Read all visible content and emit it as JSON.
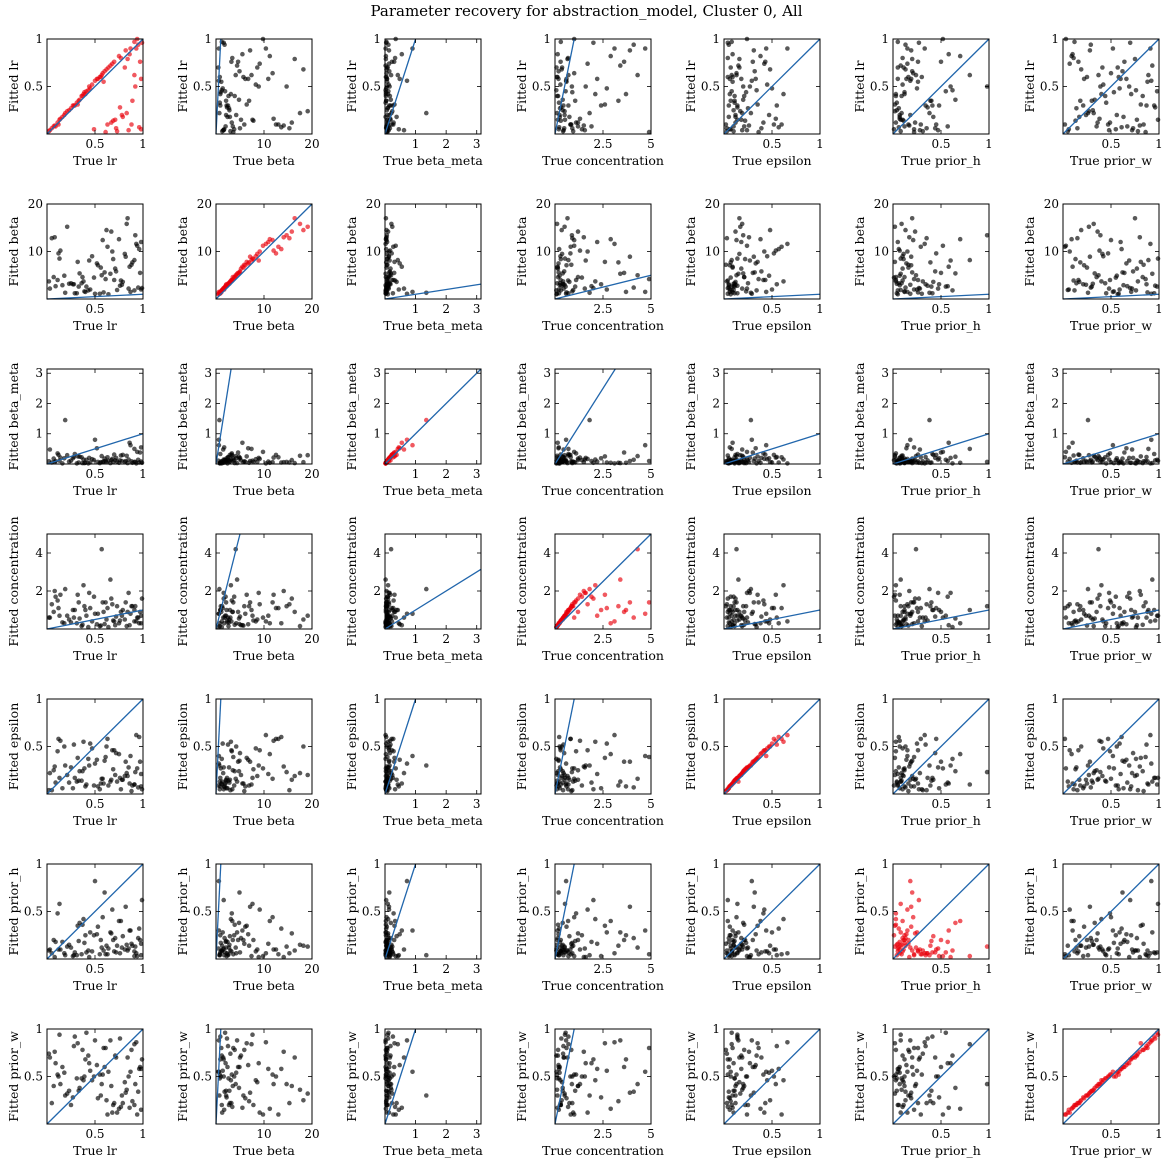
{
  "title": "Parameter recovery for abstraction_model, Cluster 0, All",
  "colors": {
    "diagonal": "#2166ac",
    "on_diag_points": "#e8000b",
    "off_diag_points": "#000000"
  },
  "chart_data": {
    "type": "scatter",
    "layout": "7x7 pairwise grid",
    "parameters": [
      {
        "name": "lr",
        "xlabel": "True lr",
        "ylabel": "Fitted lr",
        "lim": [
          0,
          1.0
        ],
        "xticks": [
          0.5,
          1.0
        ],
        "yticks": [
          0.5,
          1.0
        ]
      },
      {
        "name": "beta",
        "xlabel": "True beta",
        "ylabel": "Fitted beta",
        "lim": [
          0,
          20
        ],
        "xticks": [
          10,
          20
        ],
        "yticks": [
          10,
          20
        ]
      },
      {
        "name": "beta_meta",
        "xlabel": "True beta_meta",
        "ylabel": "Fitted beta_meta",
        "lim": [
          0,
          3.14
        ],
        "xticks": [
          1,
          2,
          3
        ],
        "yticks": [
          1,
          2,
          3
        ]
      },
      {
        "name": "concentration",
        "xlabel": "True concentration",
        "ylabel": "Fitted concentration",
        "lim": [
          0,
          5.0
        ],
        "xticks": [
          2.5,
          5.0
        ],
        "yticks": [
          2,
          4
        ]
      },
      {
        "name": "epsilon",
        "xlabel": "True epsilon",
        "ylabel": "Fitted epsilon",
        "lim": [
          0,
          1.0
        ],
        "xticks": [
          0.5,
          1.0
        ],
        "yticks": [
          0.5,
          1.0
        ]
      },
      {
        "name": "prior_h",
        "xlabel": "True prior_h",
        "ylabel": "Fitted prior_h",
        "lim": [
          0,
          1.0
        ],
        "xticks": [
          0.5,
          1.0
        ],
        "yticks": [
          0.5,
          1.0
        ]
      },
      {
        "name": "prior_w",
        "xlabel": "True prior_w",
        "ylabel": "Fitted prior_w",
        "lim": [
          0,
          1.0
        ],
        "xticks": [
          0.5,
          1.0
        ],
        "yticks": [
          0.5,
          1.0
        ]
      }
    ],
    "true_values": {
      "lr": [
        0.91,
        0.07,
        0.55,
        0.32,
        0.78,
        0.12,
        0.66,
        0.98,
        0.44,
        0.23,
        0.87,
        0.05,
        0.71,
        0.38,
        0.59,
        0.94,
        0.16,
        0.82,
        0.29,
        0.62,
        0.49,
        0.03,
        0.75,
        0.36,
        0.88,
        0.19,
        0.96,
        0.57,
        0.41,
        0.69,
        0.11,
        0.84,
        0.27,
        0.52,
        0.73,
        0.93,
        0.34,
        0.64,
        0.08,
        0.79,
        0.47,
        0.99,
        0.21,
        0.61,
        0.86,
        0.39,
        0.14,
        0.76,
        0.53,
        0.97,
        0.31,
        0.68,
        0.02,
        0.83,
        0.45,
        0.91,
        0.25,
        0.58,
        0.72,
        0.95,
        0.37,
        0.63,
        0.09,
        0.81,
        0.5,
        0.89,
        0.18,
        0.67,
        0.43,
        0.77,
        0.98,
        0.28,
        0.56,
        0.85,
        0.13,
        0.7,
        0.4,
        0.92,
        0.6,
        0.33
      ],
      "beta": [
        1.2,
        3.5,
        0.8,
        6.4,
        2.1,
        12.5,
        4.4,
        1.7,
        8.9,
        2.8,
        0.6,
        15.3,
        5.2,
        3.1,
        1.1,
        9.8,
        2.4,
        7.1,
        0.9,
        18.2,
        3.8,
        1.5,
        11.2,
        2.6,
        5.9,
        0.7,
        13.6,
        4.1,
        1.9,
        7.8,
        3.3,
        16.4,
        2.2,
        6.7,
        1.3,
        10.4,
        4.8,
        0.5,
        14.1,
        2.9,
        8.3,
        1.6,
        19.1,
        3.6,
        5.5,
        1.0,
        12.0,
        2.3,
        6.1,
        4.6,
        0.8,
        9.1,
        3.0,
        17.5,
        1.4,
        7.4,
        2.7,
        11.8,
        5.0,
        1.8,
        3.9,
        13.0,
        2.0,
        8.6,
        0.6,
        6.9,
        4.2,
        15.8,
        1.2,
        3.4,
        10.9,
        2.5,
        5.7,
        1.6,
        7.6,
        3.2,
        0.9,
        14.7,
        4.9,
        2.1
      ],
      "beta_meta": [
        0.05,
        0.12,
        0.03,
        0.31,
        0.08,
        0.22,
        0.02,
        0.45,
        0.15,
        0.06,
        0.9,
        0.04,
        0.18,
        0.1,
        0.07,
        0.35,
        0.02,
        0.13,
        0.26,
        0.05,
        0.09,
        0.62,
        0.03,
        0.16,
        0.08,
        1.35,
        0.04,
        0.2,
        0.11,
        0.06,
        0.28,
        0.03,
        0.14,
        0.48,
        0.07,
        0.02,
        0.19,
        0.09,
        0.05,
        0.38,
        0.12,
        0.04,
        0.24,
        0.08,
        0.55,
        0.03,
        0.17,
        0.1,
        0.06,
        0.3,
        0.02,
        0.13,
        0.07,
        0.21,
        0.04,
        0.42,
        0.09,
        0.05,
        0.16,
        0.11,
        0.03,
        0.27,
        0.08,
        0.06,
        0.72,
        0.04,
        0.15,
        0.1,
        0.02,
        0.33,
        0.07,
        0.18,
        0.05,
        0.12,
        0.09,
        0.23,
        0.03,
        0.06,
        0.14,
        0.04
      ],
      "concentration": [
        0.3,
        1.2,
        0.1,
        2.6,
        0.5,
        0.8,
        3.4,
        0.2,
        1.6,
        0.4,
        4.7,
        0.9,
        0.15,
        2.1,
        0.6,
        1.0,
        0.25,
        3.9,
        0.7,
        0.35,
        1.4,
        0.45,
        2.9,
        0.12,
        0.85,
        1.8,
        0.22,
        4.3,
        0.55,
        0.3,
        1.1,
        0.65,
        2.4,
        0.18,
        0.95,
        3.1,
        0.4,
        0.08,
        1.5,
        0.75,
        0.28,
        2.0,
        0.5,
        4.9,
        0.14,
        0.9,
        1.3,
        0.33,
        0.6,
        3.6,
        0.21,
        1.7,
        0.42,
        0.11,
        2.7,
        0.7,
        0.26,
        1.0,
        0.48,
        4.1,
        0.16,
        0.82,
        1.9,
        0.37,
        0.58,
        3.3,
        0.24,
        1.2,
        0.07,
        0.68,
        2.2,
        0.44,
        0.13,
        1.55,
        0.52,
        0.29,
        3.7,
        0.88,
        0.19,
        1.05
      ],
      "epsilon": [
        0.08,
        0.21,
        0.04,
        0.35,
        0.12,
        0.52,
        0.15,
        0.06,
        0.27,
        0.1,
        0.44,
        0.03,
        0.18,
        0.62,
        0.09,
        0.24,
        0.05,
        0.31,
        0.14,
        0.48,
        0.07,
        0.19,
        0.38,
        0.11,
        0.02,
        0.28,
        0.57,
        0.13,
        0.08,
        0.22,
        0.41,
        0.16,
        0.05,
        0.33,
        0.1,
        0.66,
        0.2,
        0.07,
        0.26,
        0.12,
        0.45,
        0.04,
        0.17,
        0.36,
        0.09,
        0.23,
        0.54,
        0.14,
        0.06,
        0.3,
        0.11,
        0.42,
        0.03,
        0.19,
        0.5,
        0.08,
        0.25,
        0.13,
        0.39,
        0.05,
        0.21,
        0.6,
        0.1,
        0.16,
        0.29,
        0.07,
        0.47,
        0.12,
        0.34,
        0.04,
        0.18,
        0.55,
        0.09,
        0.24,
        0.14,
        0.43,
        0.06,
        0.2,
        0.32,
        0.11
      ],
      "prior_h": [
        0.05,
        0.12,
        0.3,
        0.02,
        0.18,
        0.45,
        0.08,
        0.22,
        0.6,
        0.04,
        0.15,
        0.35,
        0.1,
        0.03,
        0.26,
        0.52,
        0.07,
        0.19,
        0.41,
        0.13,
        0.01,
        0.28,
        0.7,
        0.09,
        0.16,
        0.38,
        0.06,
        0.24,
        0.55,
        0.11,
        0.03,
        0.2,
        0.48,
        0.14,
        0.08,
        0.33,
        0.65,
        0.05,
        0.17,
        0.42,
        0.1,
        0.27,
        0.02,
        0.22,
        0.58,
        0.12,
        0.07,
        0.36,
        0.19,
        0.5,
        0.04,
        0.15,
        0.31,
        0.09,
        0.25,
        0.8,
        0.06,
        0.21,
        0.44,
        0.13,
        0.03,
        0.29,
        0.57,
        0.11,
        0.18,
        0.39,
        0.07,
        0.23,
        0.62,
        0.1,
        0.05,
        0.34,
        0.16,
        0.47,
        0.08,
        0.26,
        0.12,
        0.98,
        0.2,
        0.4
      ],
      "prior_w": [
        0.12,
        0.35,
        0.58,
        0.81,
        0.24,
        0.47,
        0.93,
        0.06,
        0.69,
        0.31,
        0.52,
        0.15,
        0.77,
        0.4,
        0.88,
        0.03,
        0.63,
        0.28,
        0.95,
        0.19,
        0.55,
        0.72,
        0.09,
        0.44,
        0.84,
        0.26,
        0.61,
        0.37,
        0.98,
        0.13,
        0.49,
        0.75,
        0.21,
        0.66,
        0.05,
        0.91,
        0.33,
        0.57,
        0.8,
        0.17,
        0.42,
        0.7,
        0.27,
        0.86,
        0.1,
        0.53,
        0.38,
        0.96,
        0.22,
        0.64,
        0.45,
        0.07,
        0.78,
        0.32,
        0.59,
        0.89,
        0.14,
        0.5,
        0.73,
        0.29,
        0.83,
        0.02,
        0.67,
        0.41,
        0.92,
        0.18,
        0.56,
        0.36,
        0.76,
        0.11,
        0.6,
        0.87,
        0.25,
        0.48,
        0.99,
        0.16,
        0.71,
        0.39,
        0.62,
        0.3
      ],
      "note": "units match each parameter's axis"
    },
    "fitted_values": {
      "lr": [
        0.97,
        0.08,
        0.6,
        0.31,
        0.2,
        0.1,
        0.72,
        0.05,
        0.5,
        0.25,
        0.9,
        0.06,
        0.15,
        0.42,
        0.55,
        1.0,
        0.18,
        0.88,
        0.3,
        0.68,
        0.05,
        0.04,
        0.82,
        0.4,
        0.1,
        0.22,
        0.07,
        0.62,
        0.45,
        0.14,
        0.12,
        0.79,
        0.3,
        0.58,
        0.03,
        0.9,
        0.36,
        0.7,
        0.09,
        0.18,
        0.52,
        0.96,
        0.24,
        0.02,
        0.84,
        0.44,
        0.16,
        0.28,
        0.58,
        0.76,
        0.33,
        0.74,
        0.03,
        0.22,
        0.48,
        0.62,
        0.27,
        0.64,
        0.06,
        0.94,
        0.4,
        0.1,
        0.08,
        0.7,
        0.56,
        0.35,
        0.2,
        0.12,
        0.46,
        0.8,
        0.58,
        0.3,
        0.6,
        0.04,
        0.15,
        0.76,
        0.42,
        0.5,
        0.66,
        0.35
      ],
      "beta": [
        1.8,
        4.6,
        1.1,
        7.8,
        3.0,
        9.6,
        5.3,
        2.0,
        8.1,
        3.2,
        1.5,
        12.8,
        6.4,
        3.7,
        1.4,
        11.2,
        2.9,
        8.9,
        1.2,
        14.5,
        4.5,
        2.2,
        12.6,
        3.3,
        7.2,
        1.3,
        10.5,
        5.0,
        2.6,
        8.4,
        4.0,
        17.0,
        3.1,
        7.5,
        1.9,
        11.6,
        5.4,
        1.0,
        13.0,
        3.6,
        9.0,
        2.3,
        15.2,
        4.2,
        6.8,
        1.6,
        10.2,
        2.8,
        7.1,
        5.5,
        1.2,
        10.0,
        3.7,
        15.8,
        2.0,
        8.2,
        3.3,
        12.4,
        5.8,
        2.4,
        4.6,
        11.0,
        2.7,
        9.5,
        1.1,
        7.7,
        4.9,
        14.2,
        1.8,
        3.9,
        12.0,
        3.1,
        6.6,
        2.2,
        8.5,
        4.0,
        1.5,
        13.4,
        5.6,
        2.6
      ],
      "beta_meta": [
        0.07,
        0.18,
        0.03,
        0.25,
        0.1,
        0.3,
        0.03,
        0.55,
        0.2,
        0.08,
        0.62,
        0.05,
        0.12,
        0.15,
        0.09,
        0.4,
        0.02,
        0.1,
        0.33,
        0.06,
        0.13,
        0.48,
        0.04,
        0.22,
        0.09,
        1.45,
        0.05,
        0.26,
        0.14,
        0.07,
        0.35,
        0.03,
        0.19,
        0.52,
        0.08,
        0.02,
        0.24,
        0.11,
        0.06,
        0.3,
        0.16,
        0.04,
        0.29,
        0.1,
        0.7,
        0.03,
        0.21,
        0.12,
        0.07,
        0.38,
        0.02,
        0.17,
        0.09,
        0.27,
        0.05,
        0.5,
        0.11,
        0.06,
        0.2,
        0.14,
        0.03,
        0.22,
        0.1,
        0.07,
        0.8,
        0.04,
        0.19,
        0.13,
        0.02,
        0.28,
        0.08,
        0.23,
        0.06,
        0.15,
        0.11,
        0.31,
        0.04,
        0.07,
        0.18,
        0.05
      ],
      "concentration": [
        0.4,
        0.9,
        0.15,
        1.8,
        0.7,
        1.1,
        2.6,
        0.3,
        1.9,
        0.5,
        0.8,
        1.3,
        0.2,
        2.3,
        0.9,
        0.6,
        0.35,
        1.4,
        1.0,
        0.5,
        1.7,
        0.6,
        0.3,
        0.15,
        1.2,
        2.1,
        0.3,
        4.2,
        0.7,
        0.45,
        1.5,
        0.9,
        1.0,
        0.25,
        1.2,
        0.4,
        0.55,
        0.1,
        2.0,
        1.0,
        0.4,
        1.6,
        0.7,
        1.4,
        0.2,
        1.2,
        1.8,
        0.45,
        0.8,
        0.9,
        0.3,
        1.3,
        0.6,
        0.15,
        1.1,
        1.0,
        0.35,
        1.4,
        0.65,
        0.6,
        0.22,
        1.1,
        1.7,
        0.5,
        0.8,
        1.2,
        0.3,
        1.6,
        0.1,
        0.9,
        0.7,
        0.6,
        0.18,
        1.9,
        0.7,
        0.4,
        1.0,
        1.2,
        0.26,
        1.4
      ],
      "epsilon": [
        0.1,
        0.25,
        0.05,
        0.38,
        0.15,
        0.58,
        0.13,
        0.08,
        0.3,
        0.12,
        0.4,
        0.04,
        0.2,
        0.55,
        0.11,
        0.27,
        0.06,
        0.34,
        0.17,
        0.5,
        0.09,
        0.22,
        0.42,
        0.14,
        0.03,
        0.3,
        0.6,
        0.16,
        0.1,
        0.26,
        0.45,
        0.19,
        0.06,
        0.36,
        0.13,
        0.62,
        0.24,
        0.09,
        0.29,
        0.15,
        0.48,
        0.05,
        0.2,
        0.39,
        0.11,
        0.27,
        0.56,
        0.17,
        0.08,
        0.34,
        0.13,
        0.46,
        0.04,
        0.22,
        0.53,
        0.1,
        0.28,
        0.16,
        0.43,
        0.07,
        0.24,
        0.58,
        0.12,
        0.19,
        0.32,
        0.09,
        0.5,
        0.15,
        0.37,
        0.05,
        0.21,
        0.52,
        0.11,
        0.28,
        0.17,
        0.46,
        0.08,
        0.23,
        0.35,
        0.14
      ],
      "prior_h": [
        0.08,
        0.2,
        0.05,
        0.35,
        0.12,
        0.1,
        0.28,
        0.04,
        0.02,
        0.15,
        0.3,
        0.06,
        0.22,
        0.42,
        0.09,
        0.03,
        0.18,
        0.55,
        0.07,
        0.14,
        0.25,
        0.1,
        0.4,
        0.05,
        0.16,
        0.04,
        0.32,
        0.12,
        0.07,
        0.2,
        0.48,
        0.09,
        0.03,
        0.26,
        0.14,
        0.06,
        0.38,
        0.11,
        0.02,
        0.24,
        0.08,
        0.62,
        0.13,
        0.05,
        0.3,
        0.17,
        0.1,
        0.06,
        0.34,
        0.2,
        0.04,
        0.52,
        0.09,
        0.15,
        0.28,
        0.03,
        0.12,
        0.44,
        0.07,
        0.22,
        0.36,
        0.05,
        0.18,
        0.1,
        0.82,
        0.14,
        0.06,
        0.27,
        0.09,
        0.4,
        0.16,
        0.04,
        0.2,
        0.11,
        0.58,
        0.08,
        0.25,
        0.13,
        0.7,
        0.19
      ],
      "prior_w": [
        0.2,
        0.4,
        0.52,
        0.85,
        0.3,
        0.5,
        0.88,
        0.15,
        0.64,
        0.35,
        0.55,
        0.22,
        0.72,
        0.46,
        0.8,
        0.1,
        0.6,
        0.33,
        0.92,
        0.25,
        0.5,
        0.7,
        0.16,
        0.48,
        0.78,
        0.3,
        0.58,
        0.42,
        0.96,
        0.2,
        0.52,
        0.7,
        0.28,
        0.62,
        0.12,
        0.86,
        0.38,
        0.55,
        0.76,
        0.22,
        0.46,
        0.68,
        0.32,
        0.8,
        0.17,
        0.5,
        0.42,
        0.9,
        0.27,
        0.6,
        0.48,
        0.12,
        0.74,
        0.36,
        0.56,
        0.84,
        0.2,
        0.52,
        0.7,
        0.34,
        0.78,
        0.1,
        0.64,
        0.44,
        0.88,
        0.24,
        0.54,
        0.4,
        0.72,
        0.18,
        0.58,
        0.82,
        0.3,
        0.5,
        0.94,
        0.22,
        0.68,
        0.42,
        0.6,
        0.35
      ]
    }
  }
}
